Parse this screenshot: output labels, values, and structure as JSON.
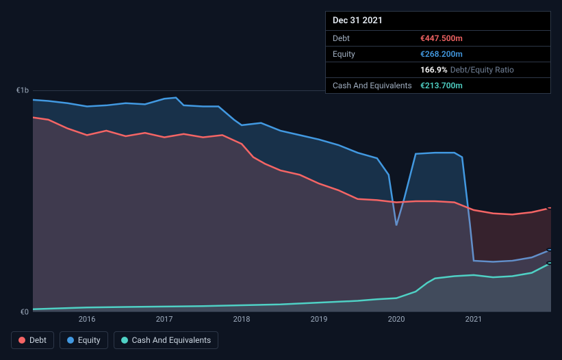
{
  "tooltip": {
    "date": "Dec 31 2021",
    "rows": [
      {
        "label": "Debt",
        "value": "€447.500m",
        "color": "#f56565"
      },
      {
        "label": "Equity",
        "value": "€268.200m",
        "color": "#4299e1"
      },
      {
        "label": "",
        "value": "166.9%",
        "color": "#ffffff",
        "extra": "Debt/Equity Ratio"
      },
      {
        "label": "Cash And Equivalents",
        "value": "€213.700m",
        "color": "#4fd1c5"
      }
    ]
  },
  "chart": {
    "type": "area",
    "background_color": "#0d1421",
    "grid_color": "#2d3748",
    "y_axis": {
      "min": 0,
      "max": 1000,
      "ticks": [
        {
          "value": 1000,
          "label": "€1b"
        },
        {
          "value": 0,
          "label": "€0"
        }
      ]
    },
    "x_axis": {
      "min": 2015.3,
      "max": 2022.0,
      "ticks": [
        2016,
        2017,
        2018,
        2019,
        2020,
        2021
      ]
    },
    "series": [
      {
        "name": "Equity",
        "color": "#4299e1",
        "fill": "rgba(66,153,225,0.22)",
        "line_width": 2.5,
        "data": [
          [
            2015.3,
            960
          ],
          [
            2015.5,
            955
          ],
          [
            2015.75,
            945
          ],
          [
            2016.0,
            930
          ],
          [
            2016.25,
            935
          ],
          [
            2016.5,
            945
          ],
          [
            2016.75,
            940
          ],
          [
            2017.0,
            965
          ],
          [
            2017.15,
            970
          ],
          [
            2017.25,
            935
          ],
          [
            2017.5,
            930
          ],
          [
            2017.7,
            930
          ],
          [
            2017.9,
            870
          ],
          [
            2018.0,
            845
          ],
          [
            2018.25,
            855
          ],
          [
            2018.5,
            820
          ],
          [
            2018.75,
            800
          ],
          [
            2019.0,
            780
          ],
          [
            2019.25,
            755
          ],
          [
            2019.5,
            720
          ],
          [
            2019.75,
            695
          ],
          [
            2019.9,
            620
          ],
          [
            2020.0,
            390
          ],
          [
            2020.1,
            510
          ],
          [
            2020.25,
            715
          ],
          [
            2020.5,
            720
          ],
          [
            2020.75,
            720
          ],
          [
            2020.85,
            700
          ],
          [
            2020.95,
            400
          ],
          [
            2021.0,
            230
          ],
          [
            2021.25,
            225
          ],
          [
            2021.5,
            230
          ],
          [
            2021.75,
            245
          ],
          [
            2022.0,
            280
          ]
        ]
      },
      {
        "name": "Debt",
        "color": "#f56565",
        "fill": "rgba(245,101,101,0.18)",
        "line_width": 2.5,
        "data": [
          [
            2015.3,
            880
          ],
          [
            2015.5,
            870
          ],
          [
            2015.75,
            830
          ],
          [
            2016.0,
            800
          ],
          [
            2016.25,
            820
          ],
          [
            2016.5,
            795
          ],
          [
            2016.75,
            810
          ],
          [
            2017.0,
            790
          ],
          [
            2017.25,
            805
          ],
          [
            2017.5,
            790
          ],
          [
            2017.75,
            800
          ],
          [
            2018.0,
            760
          ],
          [
            2018.15,
            700
          ],
          [
            2018.3,
            670
          ],
          [
            2018.5,
            640
          ],
          [
            2018.75,
            620
          ],
          [
            2019.0,
            580
          ],
          [
            2019.25,
            550
          ],
          [
            2019.5,
            510
          ],
          [
            2019.75,
            505
          ],
          [
            2020.0,
            495
          ],
          [
            2020.25,
            500
          ],
          [
            2020.5,
            500
          ],
          [
            2020.75,
            495
          ],
          [
            2021.0,
            460
          ],
          [
            2021.25,
            445
          ],
          [
            2021.5,
            440
          ],
          [
            2021.75,
            450
          ],
          [
            2022.0,
            470
          ]
        ]
      },
      {
        "name": "Cash And Equivalents",
        "color": "#4fd1c5",
        "fill": "rgba(79,209,197,0.12)",
        "line_width": 2.5,
        "data": [
          [
            2015.3,
            10
          ],
          [
            2015.75,
            15
          ],
          [
            2016.0,
            18
          ],
          [
            2016.5,
            20
          ],
          [
            2017.0,
            22
          ],
          [
            2017.5,
            24
          ],
          [
            2018.0,
            28
          ],
          [
            2018.5,
            32
          ],
          [
            2019.0,
            40
          ],
          [
            2019.5,
            48
          ],
          [
            2019.75,
            55
          ],
          [
            2020.0,
            60
          ],
          [
            2020.25,
            90
          ],
          [
            2020.4,
            130
          ],
          [
            2020.5,
            150
          ],
          [
            2020.75,
            160
          ],
          [
            2021.0,
            165
          ],
          [
            2021.25,
            155
          ],
          [
            2021.5,
            160
          ],
          [
            2021.75,
            175
          ],
          [
            2022.0,
            220
          ]
        ]
      }
    ],
    "legend": [
      {
        "name": "Debt",
        "color": "#f56565"
      },
      {
        "name": "Equity",
        "color": "#4299e1"
      },
      {
        "name": "Cash And Equivalents",
        "color": "#4fd1c5"
      }
    ]
  }
}
